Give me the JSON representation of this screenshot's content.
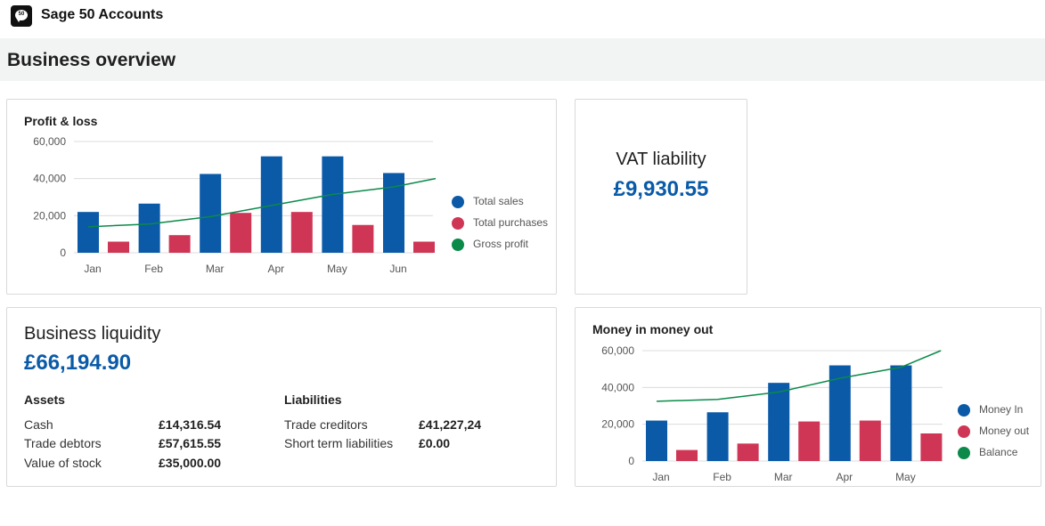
{
  "app": {
    "title": "Sage 50 Accounts",
    "logo_text": "50"
  },
  "page": {
    "title": "Business overview"
  },
  "colors": {
    "blue": "#0a5aa8",
    "red": "#cf3655",
    "green": "#0b8a4a"
  },
  "profit_loss": {
    "title": "Profit & loss",
    "legend": [
      "Total sales",
      "Total purchases",
      "Gross profit"
    ],
    "chart_data": {
      "type": "bar",
      "categories": [
        "Jan",
        "Feb",
        "Mar",
        "Apr",
        "May",
        "Jun"
      ],
      "y_ticks": [
        "60,000",
        "40,000",
        "20,000",
        "0"
      ],
      "ylim": [
        0,
        60000
      ],
      "series": [
        {
          "name": "Total sales",
          "type": "bar",
          "values": [
            22000,
            26500,
            42500,
            52000,
            52000,
            43000
          ]
        },
        {
          "name": "Total purchases",
          "type": "bar",
          "values": [
            6000,
            9500,
            21500,
            22000,
            15000,
            6000
          ]
        },
        {
          "name": "Gross profit",
          "type": "line",
          "values": [
            14000,
            15500,
            19500,
            25500,
            31500,
            35500
          ],
          "end_value": 40000
        }
      ]
    }
  },
  "vat": {
    "title": "VAT liability",
    "value": "£9,930.55"
  },
  "liquidity": {
    "title": "Business liquidity",
    "value": "£66,194.90",
    "assets": {
      "heading": "Assets",
      "rows": [
        {
          "label": "Cash",
          "value": "£14,316.54"
        },
        {
          "label": "Trade debtors",
          "value": "£57,615.55"
        },
        {
          "label": "Value of stock",
          "value": "£35,000.00"
        }
      ]
    },
    "liabilities": {
      "heading": "Liabilities",
      "rows": [
        {
          "label": "Trade creditors",
          "value": "£41,227,24"
        },
        {
          "label": "Short term liabilities",
          "value": "£0.00"
        }
      ]
    }
  },
  "money": {
    "title": "Money in money out",
    "legend": [
      "Money In",
      "Money out",
      "Balance"
    ],
    "chart_data": {
      "type": "bar",
      "categories": [
        "Jan",
        "Feb",
        "Mar",
        "Apr",
        "May"
      ],
      "y_ticks": [
        "60,000",
        "40,000",
        "20,000",
        "0"
      ],
      "ylim": [
        0,
        60000
      ],
      "series": [
        {
          "name": "Money In",
          "type": "bar",
          "values": [
            22000,
            26500,
            42500,
            52000,
            52000
          ]
        },
        {
          "name": "Money out",
          "type": "bar",
          "values": [
            6000,
            9500,
            21500,
            22000,
            15000
          ]
        },
        {
          "name": "Balance",
          "type": "line",
          "values": [
            32500,
            33500,
            37500,
            45000,
            51000
          ],
          "end_value": 60000
        }
      ]
    }
  }
}
